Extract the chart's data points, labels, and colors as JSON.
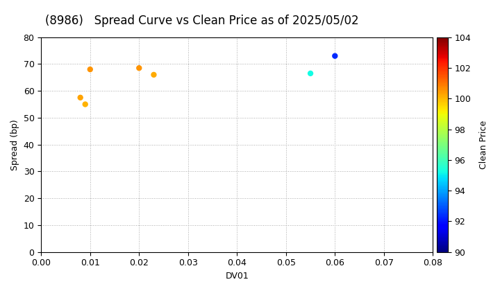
{
  "title": "(8986)   Spread Curve vs Clean Price as of 2025/05/02",
  "xlabel": "DV01",
  "ylabel": "Spread (bp)",
  "colorbar_label": "Clean Price",
  "xlim": [
    0.0,
    0.08
  ],
  "ylim": [
    0,
    80
  ],
  "xticks": [
    0.0,
    0.01,
    0.02,
    0.03,
    0.04,
    0.05,
    0.06,
    0.07,
    0.08
  ],
  "yticks": [
    0,
    10,
    20,
    30,
    40,
    50,
    60,
    70,
    80
  ],
  "colorbar_min": 90,
  "colorbar_max": 104,
  "colormap": "jet",
  "points": [
    {
      "dv01": 0.008,
      "spread": 57.5,
      "clean_price": 100.3
    },
    {
      "dv01": 0.009,
      "spread": 55.0,
      "clean_price": 100.1
    },
    {
      "dv01": 0.01,
      "spread": 68.0,
      "clean_price": 100.5
    },
    {
      "dv01": 0.02,
      "spread": 68.5,
      "clean_price": 100.5
    },
    {
      "dv01": 0.023,
      "spread": 66.0,
      "clean_price": 100.2
    },
    {
      "dv01": 0.055,
      "spread": 66.5,
      "clean_price": 95.2
    },
    {
      "dv01": 0.06,
      "spread": 73.0,
      "clean_price": 92.3
    }
  ],
  "marker_size": 25,
  "background_color": "white",
  "grid_color": "#aaaaaa",
  "grid_linestyle": ":",
  "title_fontsize": 12,
  "axis_fontsize": 9,
  "colorbar_ticks": [
    90,
    92,
    94,
    96,
    98,
    100,
    102,
    104
  ],
  "fig_width": 7.2,
  "fig_height": 4.2,
  "fig_dpi": 100
}
